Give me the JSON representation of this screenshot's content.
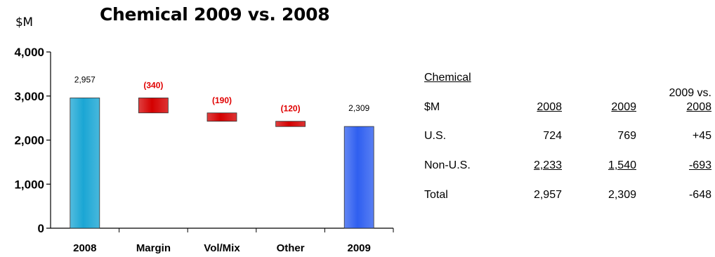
{
  "chart_data": {
    "type": "waterfall",
    "title": "Chemical 2009 vs. 2008",
    "ylabel": "$M",
    "ylim": [
      0,
      4000
    ],
    "yticks": [
      0,
      1000,
      2000,
      3000,
      4000
    ],
    "ytick_labels": [
      "0",
      "1,000",
      "2,000",
      "3,000",
      "4,000"
    ],
    "categories": [
      "2008",
      "Margin",
      "Vol/Mix",
      "Other",
      "2009"
    ],
    "bars": [
      {
        "kind": "total",
        "start": 0,
        "end": 2957,
        "label": "2,957",
        "color": "#1aa6d4"
      },
      {
        "kind": "delta",
        "start": 2957,
        "end": 2617,
        "label": "(340)",
        "color": "#d40000"
      },
      {
        "kind": "delta",
        "start": 2617,
        "end": 2427,
        "label": "(190)",
        "color": "#d40000"
      },
      {
        "kind": "delta",
        "start": 2427,
        "end": 2307,
        "label": "(120)",
        "color": "#d40000"
      },
      {
        "kind": "total",
        "start": 0,
        "end": 2309,
        "label": "2,309",
        "color": "#2f5ff0"
      }
    ]
  },
  "table": {
    "title": "Chemical",
    "unit_label": "$M",
    "headers": [
      "2008",
      "2009",
      "2009 vs.",
      "2008"
    ],
    "rows": [
      {
        "label": "U.S.",
        "values": [
          "724",
          "769",
          "+45"
        ]
      },
      {
        "label": "Non-U.S.",
        "values": [
          "2,233",
          "1,540",
          "-693"
        ]
      },
      {
        "label": "Total",
        "values": [
          "2,957",
          "2,309",
          "-648"
        ]
      }
    ]
  }
}
